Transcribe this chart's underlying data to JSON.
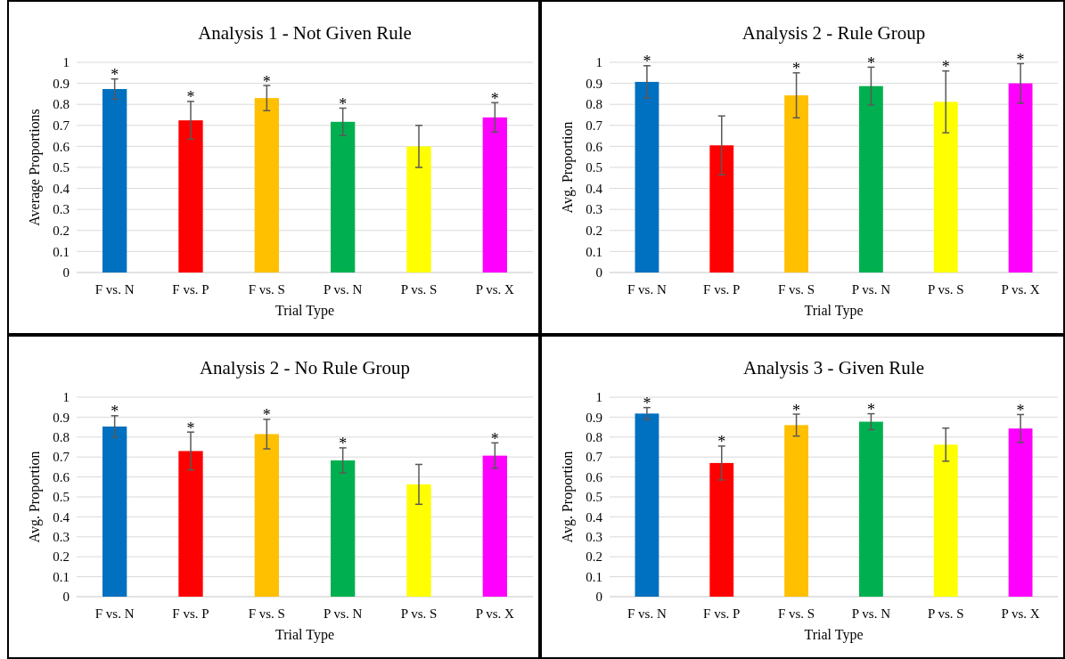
{
  "chart_data": [
    {
      "type": "bar",
      "title": "Analysis 1 - Not Given Rule",
      "xlabel": "Trial Type",
      "ylabel": "Average Proportions",
      "categories": [
        "F vs. N",
        "F vs. P",
        "F vs. S",
        "P vs. N",
        "P vs. S",
        "P vs. X"
      ],
      "values": [
        0.873,
        0.724,
        0.83,
        0.717,
        0.6,
        0.738
      ],
      "errors": [
        0.048,
        0.09,
        0.06,
        0.065,
        0.1,
        0.07
      ],
      "colors": [
        "#0070c0",
        "#ff0000",
        "#ffc000",
        "#00b050",
        "#ffff00",
        "#ff00ff"
      ],
      "ylim": [
        0,
        1
      ],
      "yticks": [
        0,
        0.1,
        0.2,
        0.3,
        0.4,
        0.5,
        0.6,
        0.7,
        0.8,
        0.9,
        1
      ],
      "grid": "y",
      "annotations": [
        {
          "text": "*",
          "x": "F vs. N",
          "y": 0.921
        },
        {
          "text": "*",
          "x": "F vs. P",
          "y": 0.814
        },
        {
          "text": "*",
          "x": "F vs. S",
          "y": 0.89
        },
        {
          "text": "*",
          "x": "P vs. N",
          "y": 0.782
        },
        {
          "text": "*",
          "x": "P vs. X",
          "y": 0.808
        }
      ]
    },
    {
      "type": "bar",
      "title": "Analysis 2 - Rule Group",
      "xlabel": "Trial Type",
      "ylabel": "Avg. Proportion",
      "categories": [
        "F vs. N",
        "F vs. P",
        "F vs. S",
        "P vs. N",
        "P vs. S",
        "P vs. X"
      ],
      "values": [
        0.907,
        0.605,
        0.843,
        0.887,
        0.812,
        0.9
      ],
      "errors": [
        0.077,
        0.14,
        0.107,
        0.09,
        0.147,
        0.094
      ],
      "colors": [
        "#0070c0",
        "#ff0000",
        "#ffc000",
        "#00b050",
        "#ffff00",
        "#ff00ff"
      ],
      "ylim": [
        0,
        1
      ],
      "yticks": [
        0,
        0.1,
        0.2,
        0.3,
        0.4,
        0.5,
        0.6,
        0.7,
        0.8,
        0.9,
        1
      ],
      "grid": "y",
      "annotations": [
        {
          "text": "*",
          "x": "F vs. N",
          "y": 0.984
        },
        {
          "text": "*",
          "x": "F vs. S",
          "y": 0.95
        },
        {
          "text": "*",
          "x": "P vs. N",
          "y": 0.977
        },
        {
          "text": "*",
          "x": "P vs. S",
          "y": 0.959
        },
        {
          "text": "*",
          "x": "P vs. X",
          "y": 0.994
        }
      ]
    },
    {
      "type": "bar",
      "title": "Analysis 2 - No Rule Group",
      "xlabel": "Trial Type",
      "ylabel": "Avg. Proportion",
      "categories": [
        "F vs. N",
        "F vs. P",
        "F vs. S",
        "P vs. N",
        "P vs. S",
        "P vs. X"
      ],
      "values": [
        0.853,
        0.73,
        0.815,
        0.683,
        0.563,
        0.707
      ],
      "errors": [
        0.054,
        0.095,
        0.074,
        0.063,
        0.1,
        0.064
      ],
      "colors": [
        "#0070c0",
        "#ff0000",
        "#ffc000",
        "#00b050",
        "#ffff00",
        "#ff00ff"
      ],
      "ylim": [
        0,
        1
      ],
      "yticks": [
        0,
        0.1,
        0.2,
        0.3,
        0.4,
        0.5,
        0.6,
        0.7,
        0.8,
        0.9,
        1
      ],
      "grid": "y",
      "annotations": [
        {
          "text": "*",
          "x": "F vs. N",
          "y": 0.907
        },
        {
          "text": "*",
          "x": "F vs. P",
          "y": 0.825
        },
        {
          "text": "*",
          "x": "F vs. S",
          "y": 0.889
        },
        {
          "text": "*",
          "x": "P vs. N",
          "y": 0.746
        },
        {
          "text": "*",
          "x": "P vs. X",
          "y": 0.771
        }
      ]
    },
    {
      "type": "bar",
      "title": "Analysis 3 - Given Rule",
      "xlabel": "Trial Type",
      "ylabel": "Avg. Proportion",
      "categories": [
        "F vs. N",
        "F vs. P",
        "F vs. S",
        "P vs. N",
        "P vs. S",
        "P vs. X"
      ],
      "values": [
        0.918,
        0.67,
        0.86,
        0.877,
        0.762,
        0.843
      ],
      "errors": [
        0.03,
        0.085,
        0.055,
        0.04,
        0.083,
        0.07
      ],
      "colors": [
        "#0070c0",
        "#ff0000",
        "#ffc000",
        "#00b050",
        "#ffff00",
        "#ff00ff"
      ],
      "ylim": [
        0,
        1
      ],
      "yticks": [
        0,
        0.1,
        0.2,
        0.3,
        0.4,
        0.5,
        0.6,
        0.7,
        0.8,
        0.9,
        1
      ],
      "grid": "y",
      "annotations": [
        {
          "text": "*",
          "x": "F vs. N",
          "y": 0.948
        },
        {
          "text": "*",
          "x": "F vs. P",
          "y": 0.755
        },
        {
          "text": "*",
          "x": "F vs. S",
          "y": 0.915
        },
        {
          "text": "*",
          "x": "P vs. N",
          "y": 0.917
        },
        {
          "text": "*",
          "x": "P vs. X",
          "y": 0.913
        }
      ]
    }
  ]
}
